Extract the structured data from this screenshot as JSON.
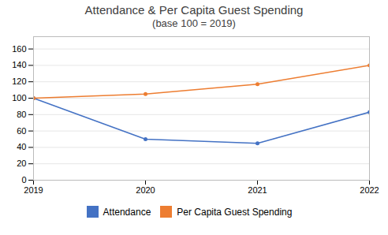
{
  "chart_data": {
    "type": "line",
    "title": "Attendance & Per Capita Guest Spending",
    "subtitle": "(base 100 = 2019)",
    "x": [
      2019,
      2020,
      2021,
      2022
    ],
    "series": [
      {
        "name": "Attendance",
        "color": "#4472C4",
        "values": [
          100,
          50,
          45,
          83
        ]
      },
      {
        "name": "Per Capita Guest Spending",
        "color": "#ED7D31",
        "values": [
          100,
          105,
          117,
          140
        ]
      }
    ],
    "xlim": [
      2019,
      2022
    ],
    "xticks": [
      2019,
      2020,
      2021,
      2022
    ],
    "ylim": [
      0,
      175
    ],
    "yticks": [
      0,
      20,
      40,
      60,
      80,
      100,
      120,
      140,
      160
    ],
    "grid": true,
    "legend": "bottom",
    "marker": "circle"
  }
}
